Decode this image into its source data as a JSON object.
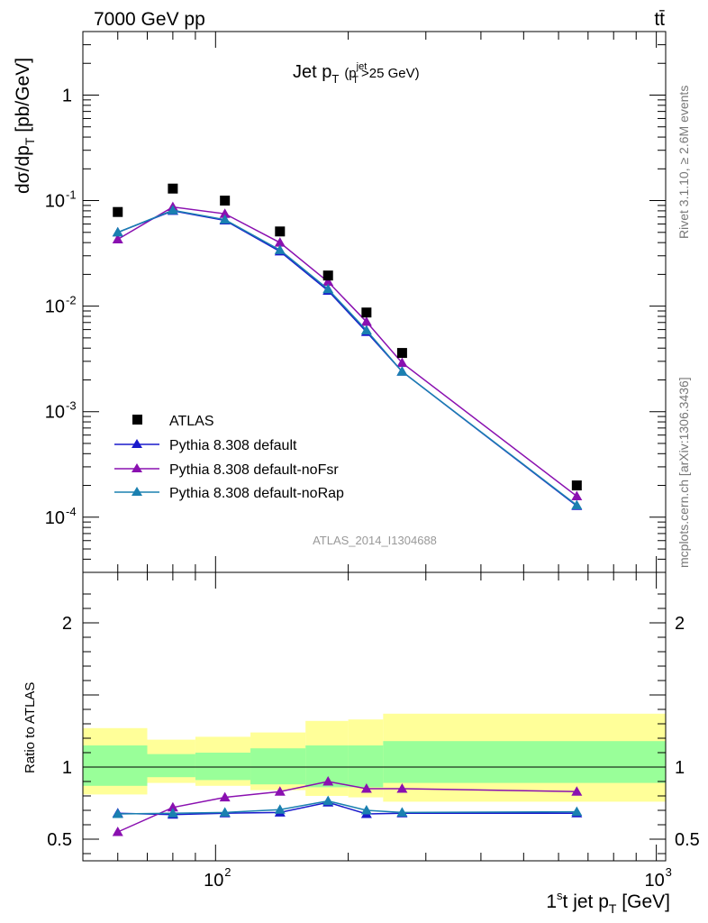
{
  "header": {
    "left": "7000 GeV pp",
    "right": "tt̄"
  },
  "side_labels": {
    "rivet": "Rivet 3.1.10, ≥ 2.6M events",
    "mcplots": "mcplots.cern.ch [arXiv:1306.3436]"
  },
  "analysis_id": "ATLAS_2014_I1304688",
  "colors": {
    "atlas": "#000000",
    "default": "#1a1acc",
    "noFsr": "#8a10b0",
    "noRap": "#1a80b0",
    "band_inner": "#99ff99",
    "band_outer": "#ffff99"
  },
  "chart_data": [
    {
      "type": "scatter",
      "title": "Jet p_T (p_T^jet>25 GeV)",
      "title_main": "Jet p",
      "title_sub_T": "T",
      "title_paren_open": "(p",
      "title_sup_jet": "jet",
      "title_sub_T2": "T",
      "title_tail": ">25 GeV)",
      "ylabel": "dσ/dp_T [pb/GeV]",
      "ylabel_main": "dσ/dp",
      "ylabel_sub": "T",
      "ylabel_unit": " [pb/GeV]",
      "yscale": "log",
      "xscale": "log",
      "xlim": [
        50,
        1050
      ],
      "ylim": [
        3e-05,
        4
      ],
      "y_ticks": [
        {
          "v": 1,
          "label": "1"
        },
        {
          "v": 0.1,
          "base": "10",
          "exp": "-1"
        },
        {
          "v": 0.01,
          "base": "10",
          "exp": "-2"
        },
        {
          "v": 0.001,
          "base": "10",
          "exp": "-3"
        },
        {
          "v": 0.0001,
          "base": "10",
          "exp": "-4"
        }
      ],
      "legend_position": "bottom-left",
      "series": [
        {
          "name": "ATLAS",
          "marker": "square",
          "x": [
            60,
            80,
            105,
            140,
            180,
            220,
            265,
            660
          ],
          "y": [
            0.078,
            0.13,
            0.1,
            0.051,
            0.0195,
            0.0087,
            0.0036,
            0.0002
          ]
        },
        {
          "name": "Pythia 8.308 default",
          "marker": "triangle",
          "x": [
            60,
            80,
            105,
            140,
            180,
            220,
            265,
            660
          ],
          "y": [
            0.05,
            0.08,
            0.065,
            0.033,
            0.014,
            0.0057,
            0.0024,
            0.000128
          ]
        },
        {
          "name": "Pythia 8.308 default-noFsr",
          "marker": "triangle",
          "x": [
            60,
            80,
            105,
            140,
            180,
            220,
            265,
            660
          ],
          "y": [
            0.043,
            0.087,
            0.075,
            0.04,
            0.017,
            0.0071,
            0.0029,
            0.000158
          ]
        },
        {
          "name": "Pythia 8.308 default-noRap",
          "marker": "triangle",
          "x": [
            60,
            80,
            105,
            140,
            180,
            220,
            265,
            660
          ],
          "y": [
            0.05,
            0.081,
            0.066,
            0.034,
            0.0145,
            0.0059,
            0.0024,
            0.00013
          ]
        }
      ]
    },
    {
      "type": "line",
      "ylabel": "Ratio to ATLAS",
      "xlabel": "1st jet p_T [GeV]",
      "xlabel_main": "1",
      "xlabel_sup": "s",
      "xlabel_mid": "t jet p",
      "xlabel_sub": "T",
      "xlabel_unit": " [GeV]",
      "xscale": "log",
      "xlim": [
        50,
        1050
      ],
      "ylim": [
        0.35,
        2.35
      ],
      "y_ticks": [
        {
          "v": 0.5,
          "label": "0.5"
        },
        {
          "v": 1,
          "label": "1"
        },
        {
          "v": 2,
          "label": "2"
        }
      ],
      "x_ticks": [
        {
          "v": 100,
          "base": "10",
          "exp": "2"
        },
        {
          "v": 1000,
          "base": "10",
          "exp": "3"
        }
      ],
      "bands": [
        {
          "x0": 50,
          "x1": 70,
          "inner": [
            0.87,
            1.15
          ],
          "outer": [
            0.81,
            1.27
          ]
        },
        {
          "x0": 70,
          "x1": 90,
          "inner": [
            0.93,
            1.09
          ],
          "outer": [
            0.89,
            1.19
          ]
        },
        {
          "x0": 90,
          "x1": 120,
          "inner": [
            0.91,
            1.1
          ],
          "outer": [
            0.87,
            1.21
          ]
        },
        {
          "x0": 120,
          "x1": 160,
          "inner": [
            0.88,
            1.13
          ],
          "outer": [
            0.84,
            1.24
          ]
        },
        {
          "x0": 160,
          "x1": 200,
          "inner": [
            0.86,
            1.15
          ],
          "outer": [
            0.8,
            1.32
          ]
        },
        {
          "x0": 200,
          "x1": 240,
          "inner": [
            0.86,
            1.15
          ],
          "outer": [
            0.79,
            1.33
          ]
        },
        {
          "x0": 240,
          "x1": 1050,
          "inner": [
            0.89,
            1.18
          ],
          "outer": [
            0.76,
            1.37
          ]
        }
      ],
      "series": [
        {
          "name": "Pythia 8.308 default",
          "x": [
            60,
            80,
            105,
            140,
            180,
            220,
            265,
            660
          ],
          "y": [
            0.68,
            0.67,
            0.68,
            0.685,
            0.755,
            0.675,
            0.68,
            0.68
          ]
        },
        {
          "name": "Pythia 8.308 default-noFsr",
          "x": [
            60,
            80,
            105,
            140,
            180,
            220,
            265,
            660
          ],
          "y": [
            0.55,
            0.72,
            0.79,
            0.83,
            0.9,
            0.85,
            0.85,
            0.83
          ]
        },
        {
          "name": "Pythia 8.308 default-noRap",
          "x": [
            60,
            80,
            105,
            140,
            180,
            220,
            265,
            660
          ],
          "y": [
            0.675,
            0.68,
            0.685,
            0.705,
            0.765,
            0.7,
            0.685,
            0.69
          ]
        }
      ]
    }
  ]
}
